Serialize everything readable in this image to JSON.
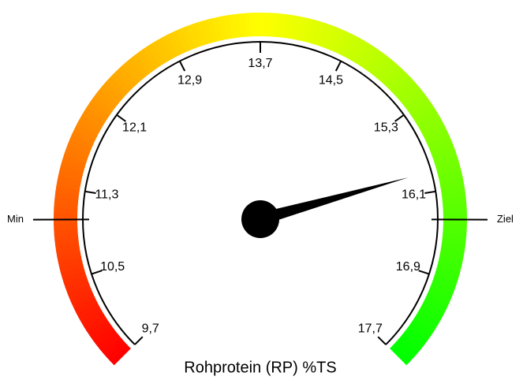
{
  "chart_data": {
    "type": "gauge",
    "title": "Rohprotein (RP) %TS",
    "min": 9.7,
    "max": 17.7,
    "value": 15.9,
    "ticks": [
      {
        "value": 9.7,
        "label": "9,7"
      },
      {
        "value": 10.5,
        "label": "10,5"
      },
      {
        "value": 11.3,
        "label": "11,3"
      },
      {
        "value": 12.1,
        "label": "12,1"
      },
      {
        "value": 12.9,
        "label": "12,9"
      },
      {
        "value": 13.7,
        "label": "13,7"
      },
      {
        "value": 14.5,
        "label": "14,5"
      },
      {
        "value": 15.3,
        "label": "15,3"
      },
      {
        "value": 16.1,
        "label": "16,1"
      },
      {
        "value": 16.9,
        "label": "16,9"
      },
      {
        "value": 17.7,
        "label": "17,7"
      }
    ],
    "markers": [
      {
        "label": "Min",
        "value": 11.03
      },
      {
        "label": "Ziel",
        "value": 16.37
      }
    ],
    "start_color": "#ff0000",
    "end_color": "#00ff00",
    "needle_color": "#000000"
  }
}
